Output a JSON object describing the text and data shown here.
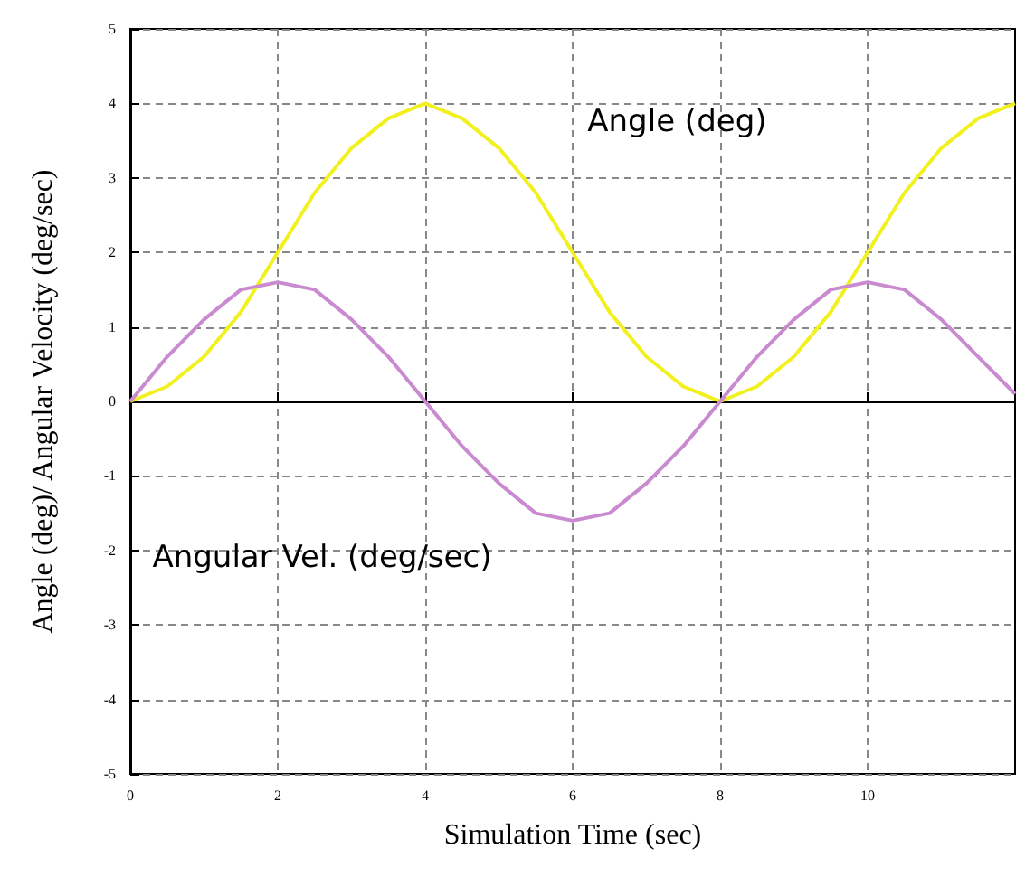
{
  "chart_data": {
    "type": "line",
    "xlabel": "Simulation Time (sec)",
    "ylabel": "Angle (deg)/ Angular Velocity (deg/sec)",
    "x": [
      0,
      0.5,
      1,
      1.5,
      2,
      2.5,
      3,
      3.5,
      4,
      4.5,
      5,
      5.5,
      6,
      6.5,
      7,
      7.5,
      8,
      8.5,
      9,
      9.5,
      10,
      10.5,
      11,
      11.5,
      12
    ],
    "series": [
      {
        "name": "Angle (deg)",
        "color": "#f2f01e",
        "values": [
          0,
          0.2,
          0.6,
          1.2,
          2,
          2.8,
          3.4,
          3.8,
          4,
          3.8,
          3.4,
          2.8,
          2,
          1.2,
          0.6,
          0.2,
          0,
          0.2,
          0.6,
          1.2,
          2,
          2.8,
          3.4,
          3.8,
          4
        ]
      },
      {
        "name": "Angular Vel. (deg/sec)",
        "color": "#c98ad0",
        "values": [
          0,
          0.6,
          1.1,
          1.5,
          1.6,
          1.5,
          1.1,
          0.6,
          0,
          -0.6,
          -1.1,
          -1.5,
          -1.6,
          -1.5,
          -1.1,
          -0.6,
          0,
          0.6,
          1.1,
          1.5,
          1.6,
          1.5,
          1.1,
          0.6,
          0.1
        ]
      }
    ],
    "xlim": [
      0,
      12
    ],
    "xticks": [
      0,
      2,
      4,
      6,
      8,
      10
    ],
    "ylim": [
      -5,
      5
    ],
    "yticks": [
      -5,
      -4,
      -3,
      -2,
      -1,
      0,
      1,
      2,
      3,
      4,
      5
    ],
    "grid": true,
    "line_style": "solid",
    "marker": "none"
  }
}
